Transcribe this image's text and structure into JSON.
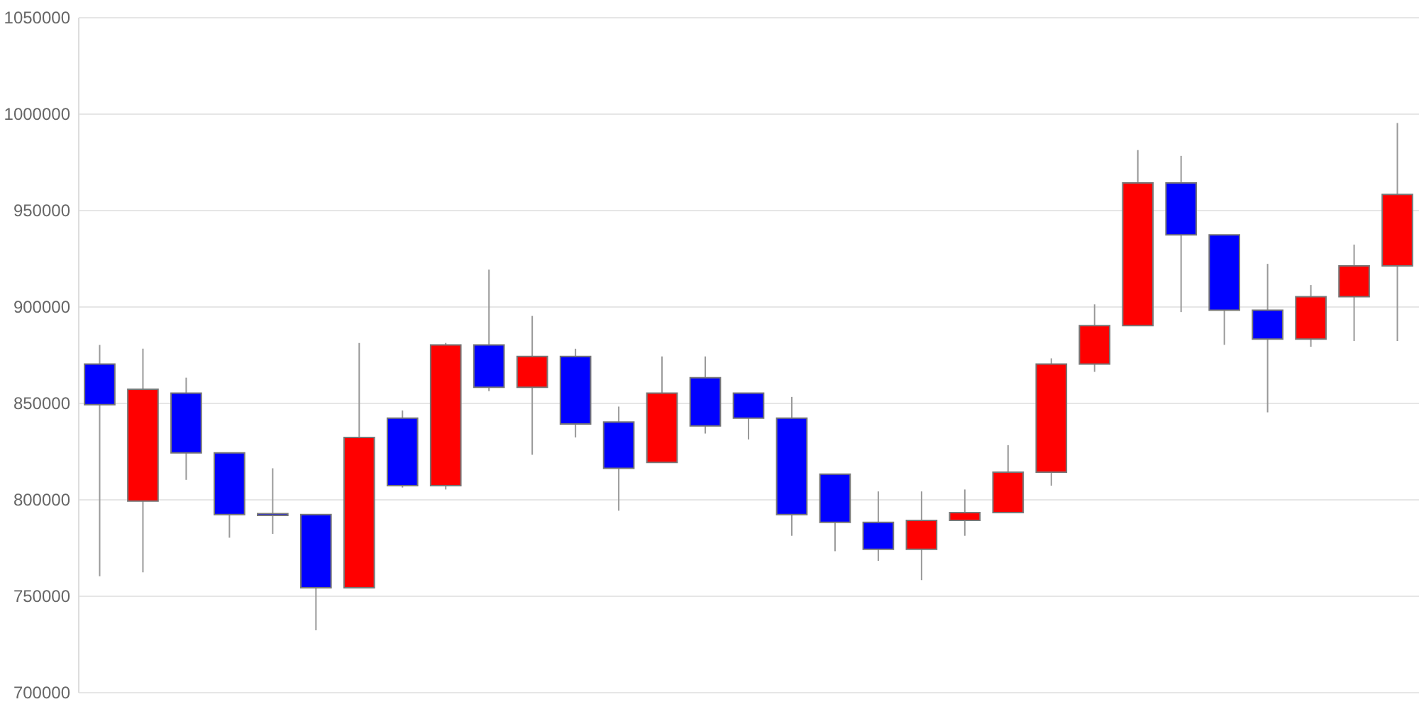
{
  "chart_data": {
    "type": "candlestick",
    "categories": [
      null,
      null,
      null,
      null,
      null,
      null,
      null,
      null,
      null,
      null,
      null,
      null,
      null,
      null,
      null,
      null,
      null,
      null,
      null,
      null,
      null,
      null,
      null,
      null,
      null,
      null,
      null,
      null,
      null,
      null,
      null
    ],
    "ohlc": [
      [
        870000,
        880000,
        760000,
        849000
      ],
      [
        799000,
        878000,
        762000,
        857000
      ],
      [
        855000,
        863000,
        810000,
        824000
      ],
      [
        824000,
        824000,
        780000,
        792000
      ],
      [
        792500,
        816000,
        782000,
        791500
      ],
      [
        792000,
        792000,
        732000,
        754000
      ],
      [
        754000,
        881000,
        754000,
        832000
      ],
      [
        842000,
        846000,
        806000,
        807000
      ],
      [
        807000,
        881000,
        805000,
        880000
      ],
      [
        880000,
        919000,
        856000,
        858000
      ],
      [
        858000,
        895000,
        823000,
        874000
      ],
      [
        874000,
        878000,
        832000,
        839000
      ],
      [
        840000,
        848000,
        794000,
        816000
      ],
      [
        819000,
        874000,
        819000,
        855000
      ],
      [
        863000,
        874000,
        834000,
        838000
      ],
      [
        855000,
        855000,
        831000,
        842000
      ],
      [
        842000,
        853000,
        781000,
        792000
      ],
      [
        813000,
        813000,
        773000,
        788000
      ],
      [
        788000,
        804000,
        768000,
        774000
      ],
      [
        774000,
        804000,
        758000,
        789000
      ],
      [
        789000,
        805000,
        781000,
        793000
      ],
      [
        793000,
        828000,
        793000,
        814000
      ],
      [
        814000,
        873000,
        807000,
        870000
      ],
      [
        870000,
        901000,
        866000,
        890000
      ],
      [
        890000,
        981000,
        890000,
        964000
      ],
      [
        964000,
        978000,
        897000,
        937000
      ],
      [
        937000,
        937000,
        880000,
        898000
      ],
      [
        898000,
        922000,
        845000,
        883000
      ],
      [
        883000,
        911000,
        879000,
        905000
      ],
      [
        905000,
        932000,
        882000,
        921000
      ],
      [
        921000,
        995000,
        882000,
        958000
      ]
    ],
    "colors": [
      "#0000ff",
      "#ff0000",
      "#0000ff",
      "#0000ff",
      "#0000ff",
      "#0000ff",
      "#ff0000",
      "#0000ff",
      "#ff0000",
      "#0000ff",
      "#ff0000",
      "#0000ff",
      "#0000ff",
      "#ff0000",
      "#0000ff",
      "#0000ff",
      "#0000ff",
      "#0000ff",
      "#0000ff",
      "#ff0000",
      "#ff0000",
      "#ff0000",
      "#ff0000",
      "#ff0000",
      "#ff0000",
      "#0000ff",
      "#0000ff",
      "#0000ff",
      "#ff0000",
      "#ff0000",
      "#ff0000"
    ],
    "ylim": [
      700000,
      1050000
    ],
    "yticks": [
      700000,
      750000,
      800000,
      850000,
      900000,
      950000,
      1000000,
      1050000
    ],
    "grid": "y",
    "tick_labels": "y"
  }
}
